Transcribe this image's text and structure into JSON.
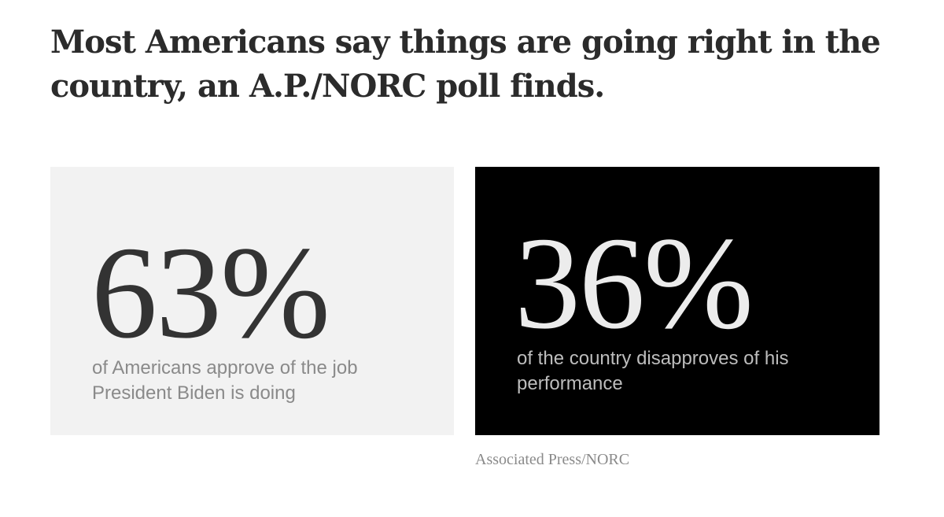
{
  "headline": "Most Americans say things are going right in the country, an A.P./NORC poll finds.",
  "chart_data": {
    "type": "table",
    "title": "Most Americans say things are going right in the country, an A.P./NORC poll finds.",
    "stats": [
      {
        "value": "63%",
        "number": 63,
        "unit": "%",
        "description": "of Americans approve of the job President Biden is doing",
        "background": "#f2f2f2",
        "text_color": "#333333"
      },
      {
        "value": "36%",
        "number": 36,
        "unit": "%",
        "description": "of the country disapproves of his performance",
        "background": "#000000",
        "text_color": "#ececec"
      }
    ],
    "source": "Associated Press/NORC"
  }
}
